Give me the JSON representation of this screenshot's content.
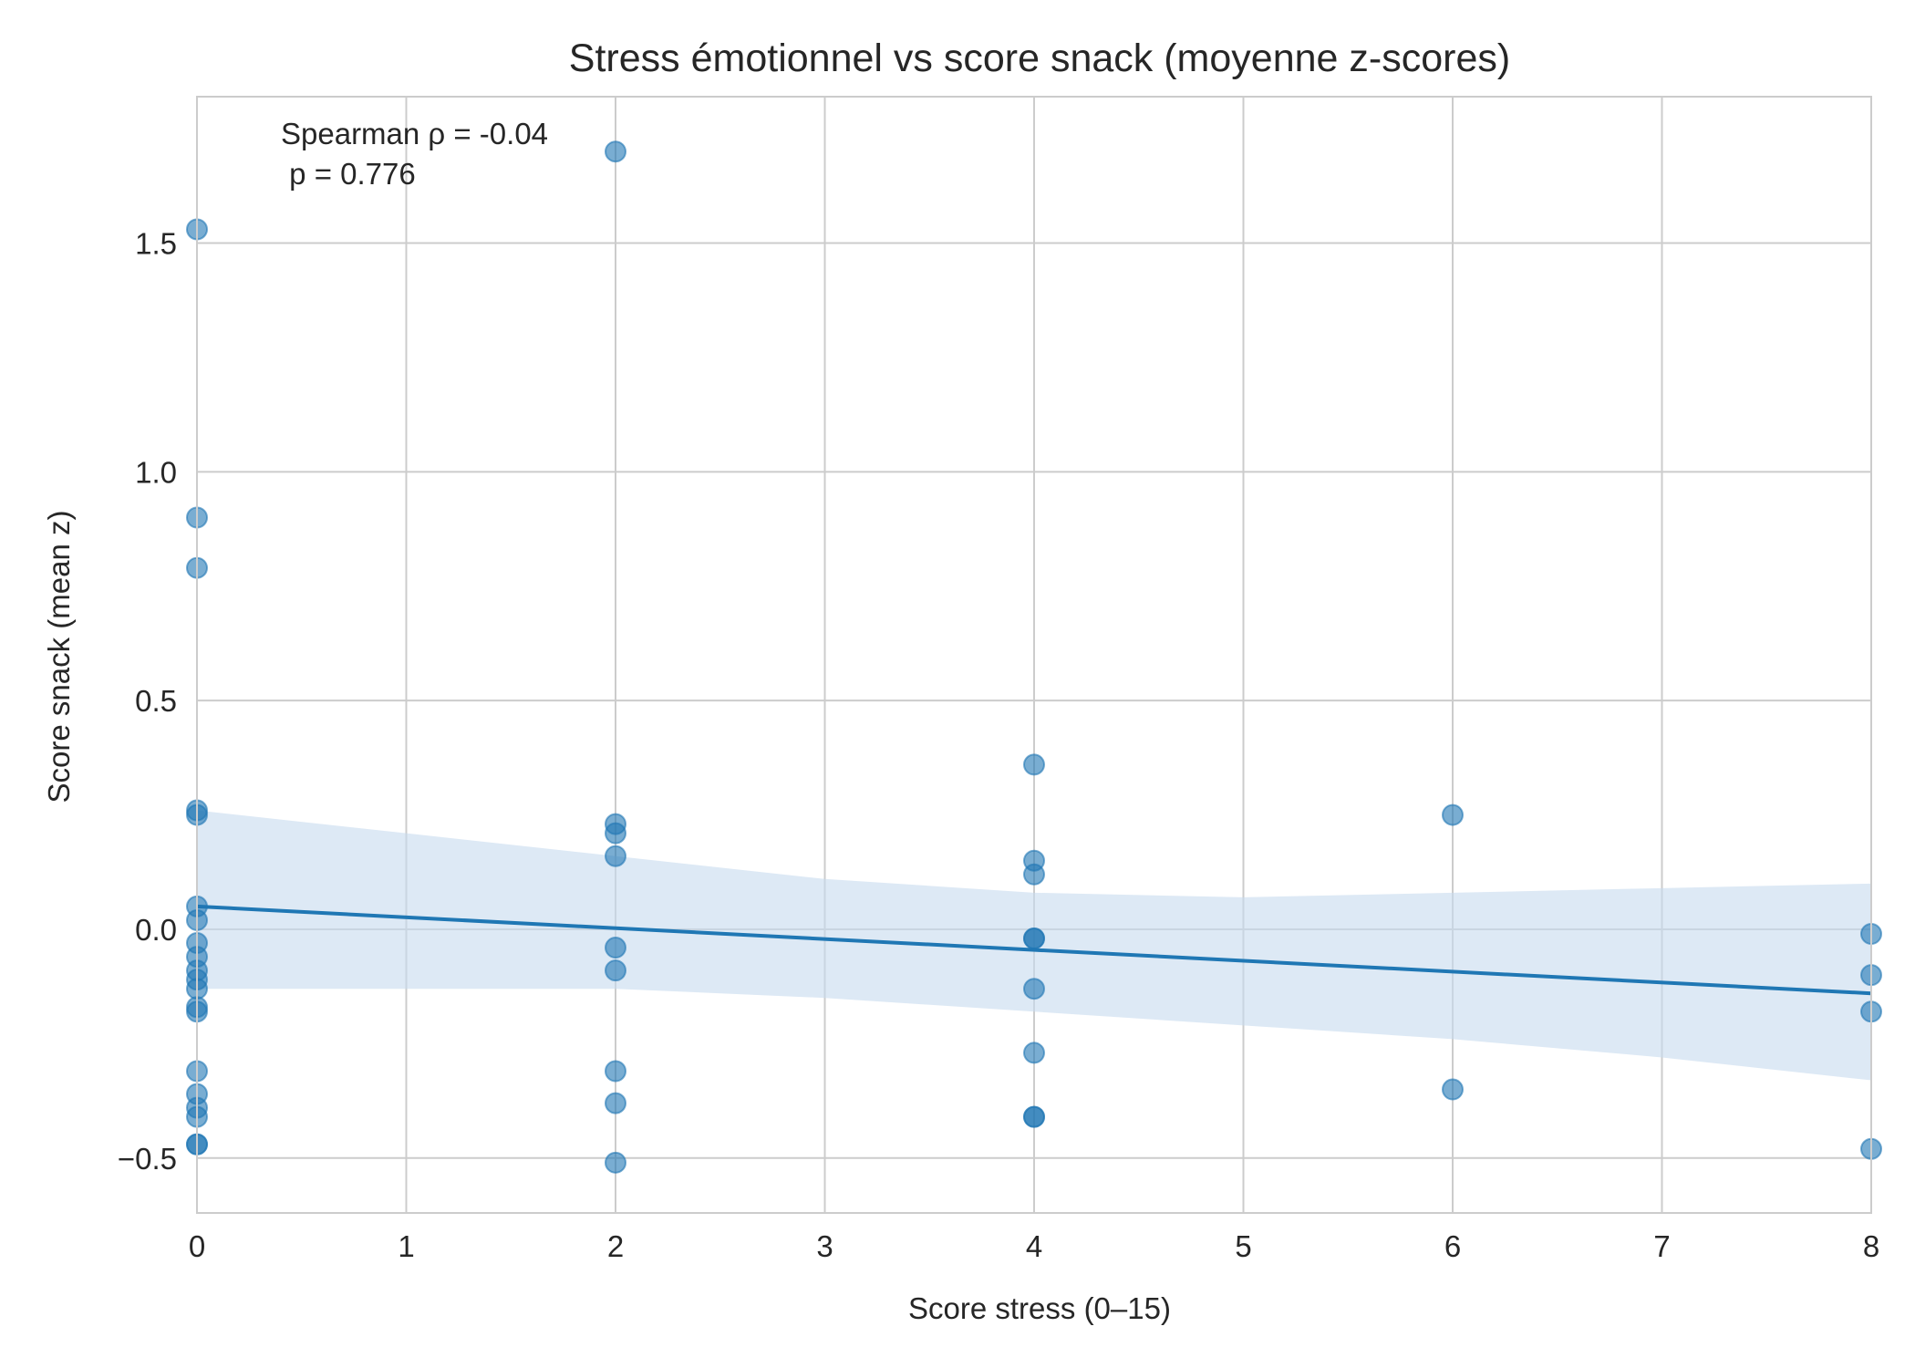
{
  "chart_data": {
    "type": "scatter",
    "title": "Stress émotionnel vs score snack (moyenne z-scores)",
    "xlabel": "Score stress (0–15)",
    "ylabel": "Score snack (mean z)",
    "xlim": [
      0,
      8
    ],
    "ylim": [
      -0.62,
      1.82
    ],
    "xticks": [
      0,
      1,
      2,
      3,
      4,
      5,
      6,
      7,
      8
    ],
    "xtick_labels": [
      "0",
      "1",
      "2",
      "3",
      "4",
      "5",
      "6",
      "7",
      "8"
    ],
    "yticks": [
      -0.5,
      0.0,
      0.5,
      1.0,
      1.5
    ],
    "ytick_labels": [
      "−0.5",
      "0.0",
      "0.5",
      "1.0",
      "1.5"
    ],
    "grid": true,
    "annotation": [
      "Spearman ρ = -0.04",
      " p = 0.776"
    ],
    "colors": {
      "points": "#1f77b4",
      "line": "#1f77b4",
      "ci_band": "#c6dbef",
      "grid": "#cccccc",
      "frame": "#cccccc",
      "text": "#262626"
    },
    "points": [
      {
        "x": 0,
        "y": 1.53
      },
      {
        "x": 0,
        "y": 0.9
      },
      {
        "x": 0,
        "y": 0.79
      },
      {
        "x": 0,
        "y": 0.26
      },
      {
        "x": 0,
        "y": 0.25
      },
      {
        "x": 0,
        "y": 0.05
      },
      {
        "x": 0,
        "y": 0.02
      },
      {
        "x": 0,
        "y": -0.03
      },
      {
        "x": 0,
        "y": -0.06
      },
      {
        "x": 0,
        "y": -0.09
      },
      {
        "x": 0,
        "y": -0.11
      },
      {
        "x": 0,
        "y": -0.13
      },
      {
        "x": 0,
        "y": -0.17
      },
      {
        "x": 0,
        "y": -0.18
      },
      {
        "x": 0,
        "y": -0.31
      },
      {
        "x": 0,
        "y": -0.36
      },
      {
        "x": 0,
        "y": -0.39
      },
      {
        "x": 0,
        "y": -0.41
      },
      {
        "x": 0,
        "y": -0.47
      },
      {
        "x": 0,
        "y": -0.47
      },
      {
        "x": 2,
        "y": 1.7
      },
      {
        "x": 2,
        "y": 0.23
      },
      {
        "x": 2,
        "y": 0.21
      },
      {
        "x": 2,
        "y": 0.16
      },
      {
        "x": 2,
        "y": -0.04
      },
      {
        "x": 2,
        "y": -0.09
      },
      {
        "x": 2,
        "y": -0.31
      },
      {
        "x": 2,
        "y": -0.38
      },
      {
        "x": 2,
        "y": -0.51
      },
      {
        "x": 4,
        "y": 0.36
      },
      {
        "x": 4,
        "y": 0.15
      },
      {
        "x": 4,
        "y": 0.12
      },
      {
        "x": 4,
        "y": -0.02
      },
      {
        "x": 4,
        "y": -0.02
      },
      {
        "x": 4,
        "y": -0.13
      },
      {
        "x": 4,
        "y": -0.27
      },
      {
        "x": 4,
        "y": -0.41
      },
      {
        "x": 4,
        "y": -0.41
      },
      {
        "x": 6,
        "y": 0.25
      },
      {
        "x": 6,
        "y": -0.35
      },
      {
        "x": 8,
        "y": -0.01
      },
      {
        "x": 8,
        "y": -0.1
      },
      {
        "x": 8,
        "y": -0.18
      },
      {
        "x": 8,
        "y": -0.48
      }
    ],
    "regression": {
      "x": [
        0,
        8
      ],
      "y": [
        0.05,
        -0.14
      ]
    },
    "ci_band": {
      "x": [
        0,
        1,
        2,
        3,
        4,
        5,
        6,
        7,
        8
      ],
      "upper": [
        0.26,
        0.21,
        0.16,
        0.11,
        0.08,
        0.07,
        0.08,
        0.09,
        0.1
      ],
      "lower": [
        -0.13,
        -0.13,
        -0.13,
        -0.15,
        -0.18,
        -0.21,
        -0.24,
        -0.28,
        -0.33
      ]
    }
  }
}
